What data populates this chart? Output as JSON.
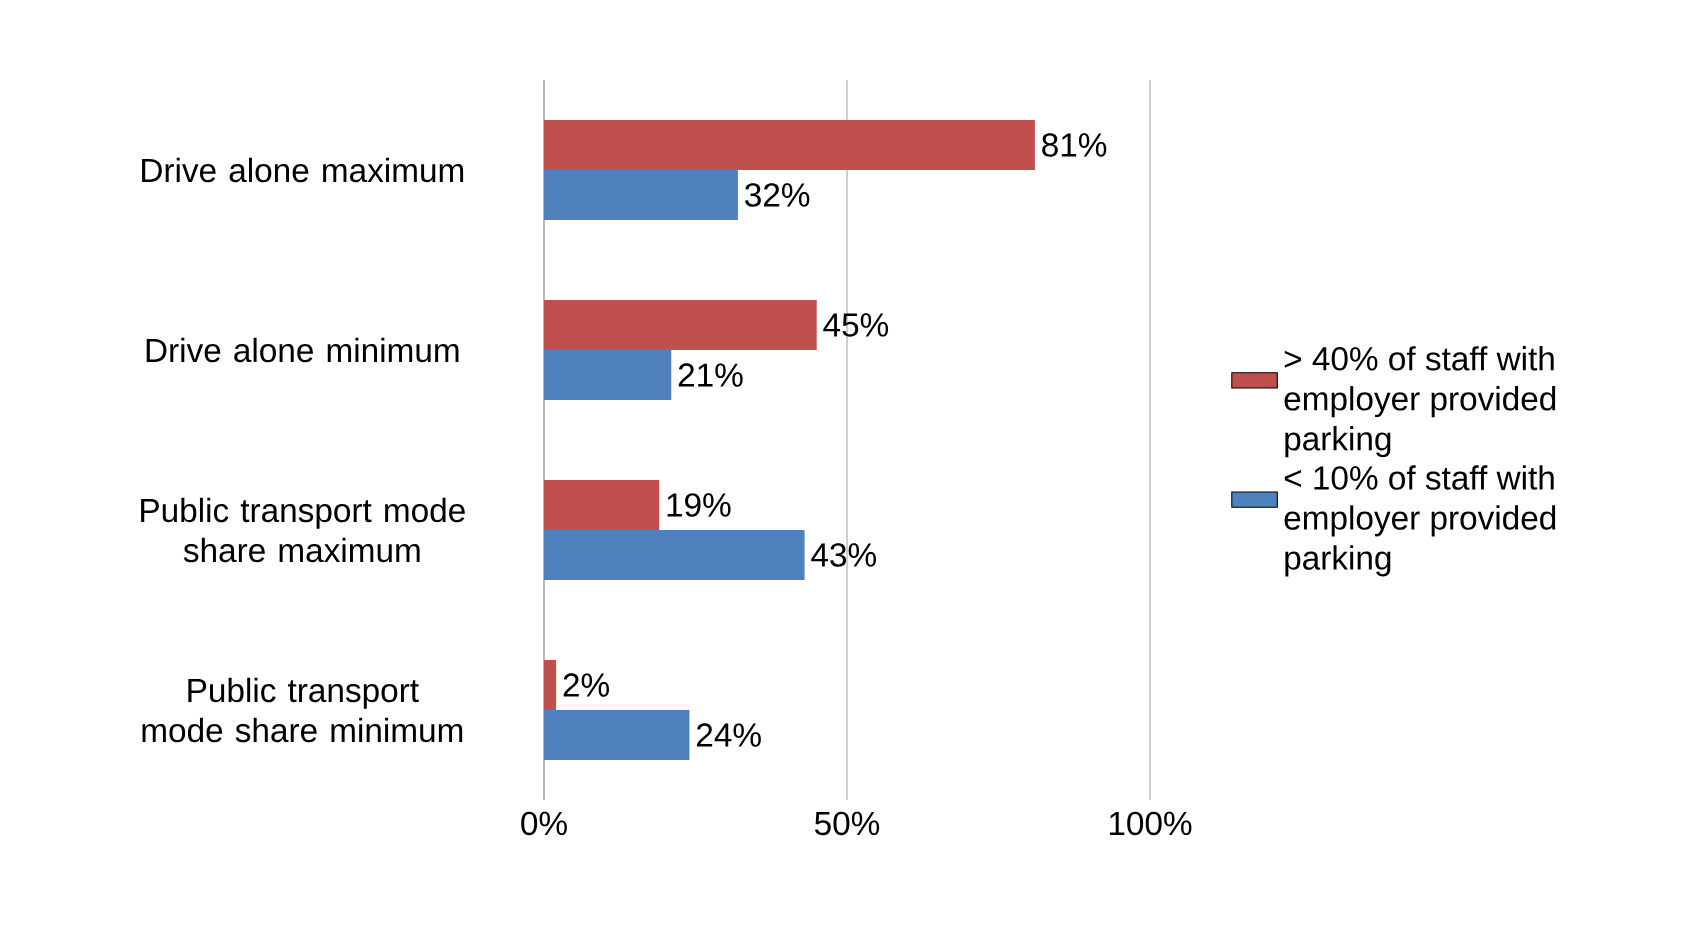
{
  "chart_data": {
    "type": "bar",
    "orientation": "horizontal",
    "categories": [
      "Drive alone maximum",
      "Drive alone minimum",
      "Public transport mode share maximum",
      "Public transport mode share minimum"
    ],
    "series": [
      {
        "name": "> 40% of staff with employer provided parking",
        "color": "#c0504d",
        "values": [
          81,
          45,
          19,
          2
        ],
        "value_labels": [
          "81%",
          "45%",
          "19%",
          "2%"
        ]
      },
      {
        "name": "< 10% of staff with employer provided parking",
        "color": "#4f81bd",
        "values": [
          32,
          21,
          43,
          24
        ],
        "value_labels": [
          "32%",
          "21%",
          "43%",
          "24%"
        ]
      }
    ],
    "xlim": [
      0,
      100
    ],
    "xticks": [
      {
        "value": 0,
        "label": "0%"
      },
      {
        "value": 50,
        "label": "50%"
      },
      {
        "value": 100,
        "label": "100%"
      }
    ],
    "grid": "x",
    "legend": "right"
  }
}
